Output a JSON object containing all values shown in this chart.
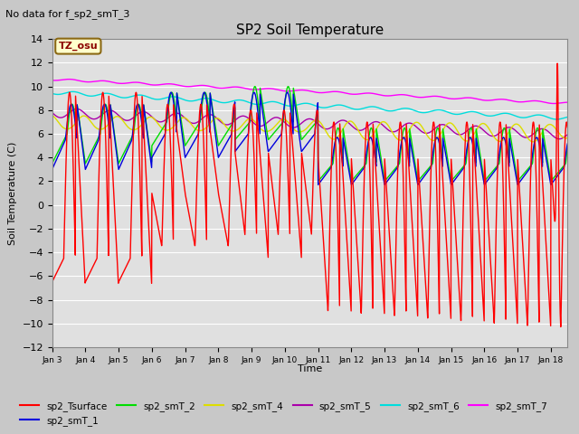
{
  "title": "SP2 Soil Temperature",
  "subtitle": "No data for f_sp2_smT_3",
  "xlabel": "Time",
  "ylabel": "Soil Temperature (C)",
  "ylim": [
    -12,
    14
  ],
  "bg_color": "#c8c8c8",
  "plot_bg_color": "#e0e0e0",
  "series_colors": {
    "sp2_Tsurface": "#ff0000",
    "sp2_smT_1": "#0000dd",
    "sp2_smT_2": "#00dd00",
    "sp2_smT_4": "#dddd00",
    "sp2_smT_5": "#aa00aa",
    "sp2_smT_6": "#00dddd",
    "sp2_smT_7": "#ff00ff"
  },
  "x_tick_labels": [
    "Jan 3",
    "Jan 4",
    "Jan 5",
    "Jan 6",
    "Jan 7",
    "Jan 8",
    "Jan 9",
    "Jan 10",
    "Jan 11",
    "Jan 12",
    "Jan 13",
    "Jan 14",
    "Jan 15",
    "Jan 16",
    "Jan 17",
    "Jan 18"
  ],
  "yticks": [
    -12,
    -10,
    -8,
    -6,
    -4,
    -2,
    0,
    2,
    4,
    6,
    8,
    10,
    12,
    14
  ]
}
